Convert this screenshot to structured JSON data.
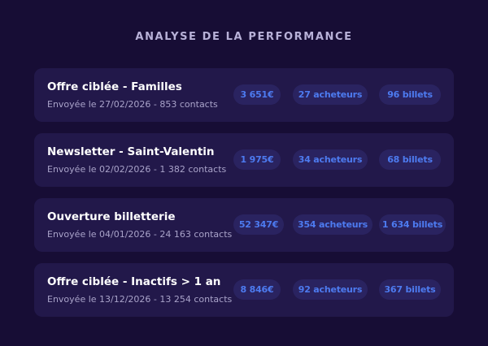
{
  "title": "ANALYSE DE LA PERFORMANCE",
  "campaigns": [
    {
      "name": "Offre ciblée - Familles",
      "meta": "Envoyée le 27/02/2026 - 853 contacts",
      "revenue": "3 651€",
      "buyers": "27 acheteurs",
      "tickets": "96 billets"
    },
    {
      "name": "Newsletter - Saint-Valentin",
      "meta": "Envoyée le 02/02/2026 - 1 382 contacts",
      "revenue": "1 975€",
      "buyers": "34 acheteurs",
      "tickets": "68 billets"
    },
    {
      "name": "Ouverture billetterie",
      "meta": "Envoyée le 04/01/2026 - 24 163 contacts",
      "revenue": "52 347€",
      "buyers": "354 acheteurs",
      "tickets": "1 634 billets"
    },
    {
      "name": "Offre ciblée - Inactifs > 1 an",
      "meta": "Envoyée le 13/12/2026 - 13 254 contacts",
      "revenue": "8 846€",
      "buyers": "92 acheteurs",
      "tickets": "367 billets"
    }
  ]
}
